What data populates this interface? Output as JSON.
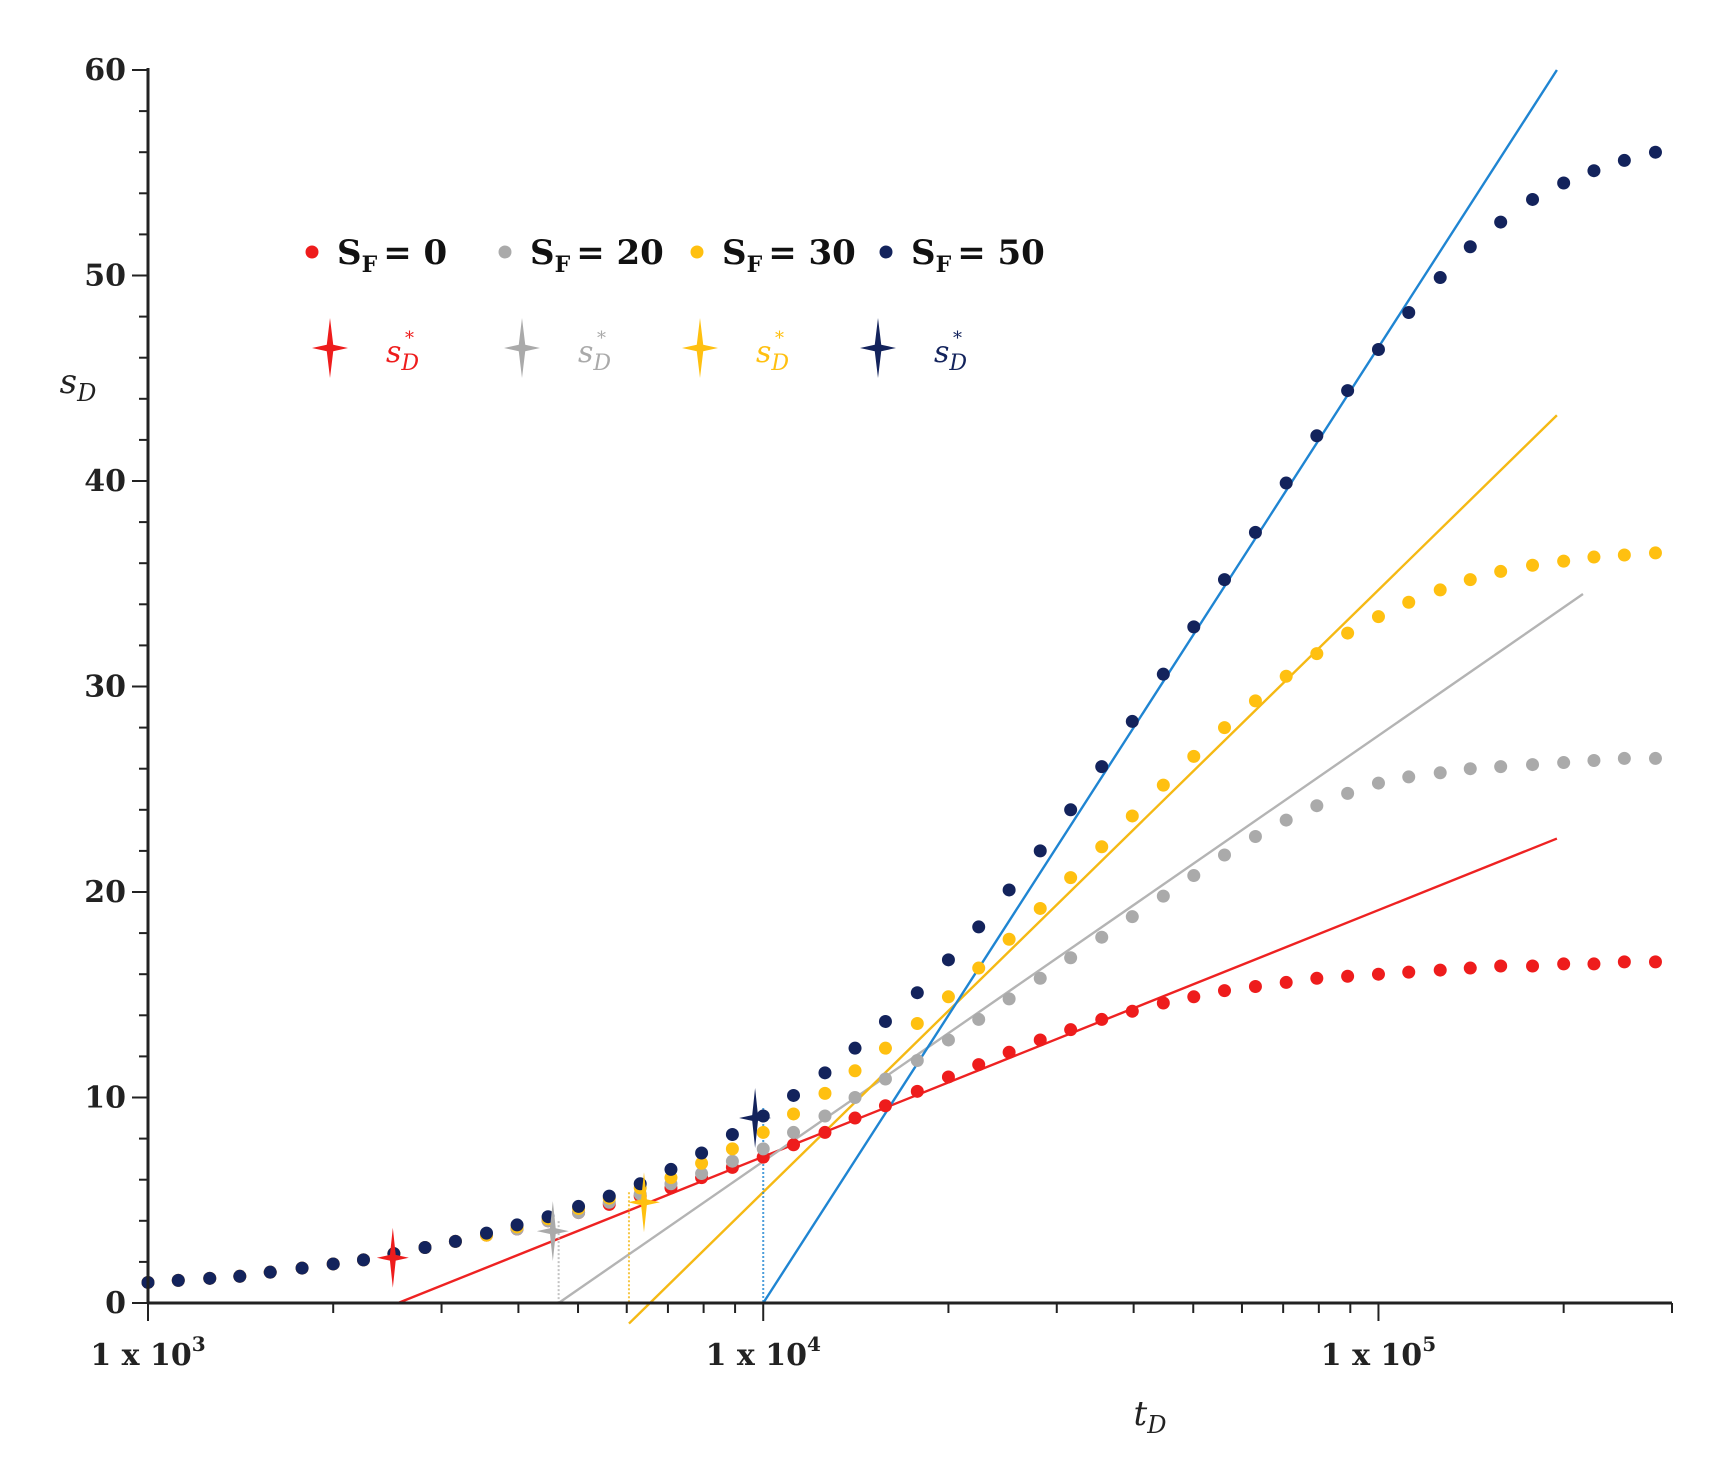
{
  "chart_data": {
    "type": "scatter",
    "title": "",
    "xlabel": "t",
    "xlabel_sub": "D",
    "ylabel": "s",
    "ylabel_sub": "D",
    "xscale": "log",
    "xlim": [
      1000,
      300000
    ],
    "ylim": [
      0,
      60
    ],
    "grid": false,
    "legend_position": "top-left",
    "x_ticks": [
      {
        "value": 1000,
        "label": "1 x 10",
        "exp": "3"
      },
      {
        "value": 10000,
        "label": "1 x 10",
        "exp": "4"
      },
      {
        "value": 100000,
        "label": "1 x 10",
        "exp": "5"
      }
    ],
    "y_ticks": [
      0,
      10,
      20,
      30,
      40,
      50,
      60
    ],
    "legend_label_prefix": "S",
    "legend_label_sub": "F",
    "star_label": "s",
    "star_label_sub": "D",
    "star_label_sup": "*",
    "x": [
      1000,
      1120,
      1260,
      1410,
      1580,
      1780,
      2000,
      2240,
      2510,
      2820,
      3160,
      3550,
      3980,
      4470,
      5010,
      5620,
      6310,
      7080,
      7940,
      8910,
      10000,
      11200,
      12600,
      14100,
      15800,
      17800,
      20000,
      22400,
      25100,
      28200,
      31600,
      35500,
      39800,
      44700,
      50100,
      56200,
      63100,
      70800,
      79400,
      89100,
      100000,
      112000,
      126000,
      141000,
      158000,
      178000,
      200000,
      224000,
      251000,
      282000
    ],
    "series": [
      {
        "name": "S_F = 0",
        "legend": "= 0",
        "color": "#ee1c1c",
        "values": [
          1.0,
          1.1,
          1.2,
          1.3,
          1.5,
          1.7,
          1.9,
          2.1,
          2.4,
          2.7,
          3.0,
          3.3,
          3.6,
          4.0,
          4.4,
          4.8,
          5.2,
          5.6,
          6.1,
          6.6,
          7.1,
          7.7,
          8.3,
          9.0,
          9.6,
          10.3,
          11.0,
          11.6,
          12.2,
          12.8,
          13.3,
          13.8,
          14.2,
          14.6,
          14.9,
          15.2,
          15.4,
          15.6,
          15.8,
          15.9,
          16.0,
          16.1,
          16.2,
          16.3,
          16.4,
          16.4,
          16.5,
          16.5,
          16.6,
          16.6
        ],
        "star": {
          "x": 2500,
          "y": 2.2
        },
        "fit": {
          "x0": 2550,
          "y0": 0,
          "x1": 195000,
          "y1": 22.6
        }
      },
      {
        "name": "S_F = 20",
        "legend": "= 20",
        "color": "#aaaaaa",
        "values": [
          1.0,
          1.1,
          1.2,
          1.3,
          1.5,
          1.7,
          1.9,
          2.1,
          2.4,
          2.7,
          3.0,
          3.3,
          3.6,
          4.0,
          4.4,
          4.9,
          5.3,
          5.8,
          6.3,
          6.9,
          7.5,
          8.3,
          9.1,
          10.0,
          10.9,
          11.8,
          12.8,
          13.8,
          14.8,
          15.8,
          16.8,
          17.8,
          18.8,
          19.8,
          20.8,
          21.8,
          22.7,
          23.5,
          24.2,
          24.8,
          25.3,
          25.6,
          25.8,
          26.0,
          26.1,
          26.2,
          26.3,
          26.4,
          26.5,
          26.5
        ],
        "star": {
          "x": 4550,
          "y": 3.5
        },
        "fit": {
          "x0": 4650,
          "y0": 0,
          "x1": 215000,
          "y1": 34.5
        }
      },
      {
        "name": "S_F = 30",
        "legend": "= 30",
        "color": "#ffc010",
        "values": [
          1.0,
          1.1,
          1.2,
          1.3,
          1.5,
          1.7,
          1.9,
          2.1,
          2.4,
          2.7,
          3.0,
          3.3,
          3.7,
          4.1,
          4.6,
          5.1,
          5.6,
          6.1,
          6.8,
          7.5,
          8.3,
          9.2,
          10.2,
          11.3,
          12.4,
          13.6,
          14.9,
          16.3,
          17.7,
          19.2,
          20.7,
          22.2,
          23.7,
          25.2,
          26.6,
          28.0,
          29.3,
          30.5,
          31.6,
          32.6,
          33.4,
          34.1,
          34.7,
          35.2,
          35.6,
          35.9,
          36.1,
          36.3,
          36.4,
          36.5
        ],
        "star": {
          "x": 6400,
          "y": 4.9
        },
        "fit": {
          "x0": 6050,
          "y0": -1,
          "x1": 195000,
          "y1": 43.2
        }
      },
      {
        "name": "S_F = 50",
        "legend": "= 50",
        "color": "#13235c",
        "values": [
          1.0,
          1.1,
          1.2,
          1.3,
          1.5,
          1.7,
          1.9,
          2.1,
          2.4,
          2.7,
          3.0,
          3.4,
          3.8,
          4.2,
          4.7,
          5.2,
          5.8,
          6.5,
          7.3,
          8.2,
          9.1,
          10.1,
          11.2,
          12.4,
          13.7,
          15.1,
          16.7,
          18.3,
          20.1,
          22.0,
          24.0,
          26.1,
          28.3,
          30.6,
          32.9,
          35.2,
          37.5,
          39.9,
          42.2,
          44.4,
          46.4,
          48.2,
          49.9,
          51.4,
          52.6,
          53.7,
          54.5,
          55.1,
          55.6,
          56.0
        ],
        "star": {
          "x": 9700,
          "y": 9.0
        },
        "fit": {
          "x0": 10000,
          "y0": 0,
          "x1": 195000,
          "y1": 60
        }
      }
    ],
    "fit_line_colors": [
      "#ee2222",
      "#b4b4b4",
      "#f5b914",
      "#1f85d2"
    ]
  }
}
